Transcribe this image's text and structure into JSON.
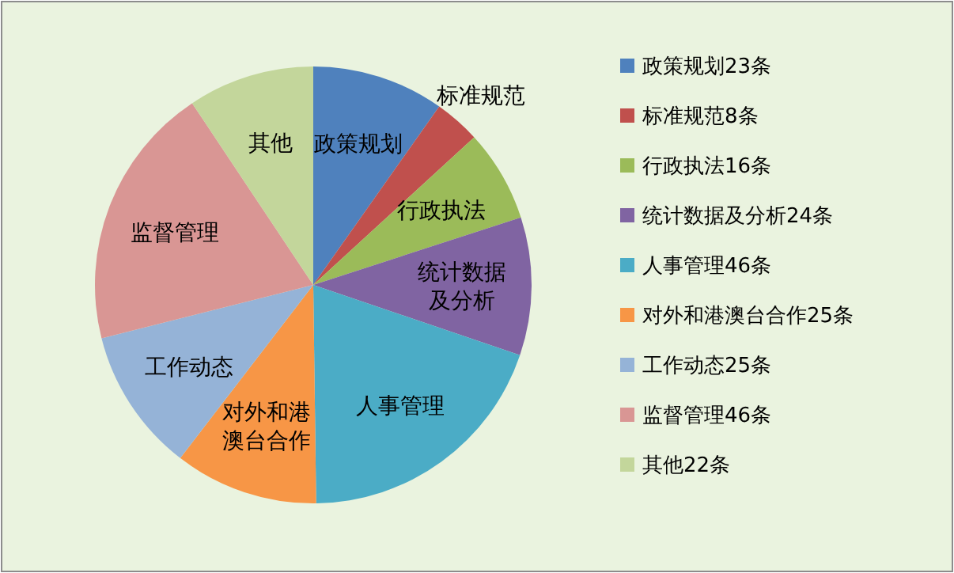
{
  "chart_data": {
    "type": "pie",
    "categories": [
      "政策规划23条",
      "标准规范8条",
      "行政执法16条",
      "统计数据及分析24条",
      "人事管理46条",
      "对外和港澳台合作25条",
      "工作动态25条",
      "监督管理46条",
      "其他22条"
    ],
    "values": [
      23,
      8,
      16,
      24,
      46,
      25,
      25,
      46,
      22
    ],
    "colors": [
      "#4f81bd",
      "#c0504d",
      "#9bbb59",
      "#8064a2",
      "#4bacc6",
      "#f79646",
      "#95b3d7",
      "#d99694",
      "#c3d69b"
    ],
    "annotations": [
      "政策规划",
      "标准规范",
      "行政执法",
      "统计数据及分析",
      "人事管理",
      "对外和港澳台合作",
      "工作动态",
      "监督管理",
      "其他"
    ],
    "legend": "right"
  }
}
